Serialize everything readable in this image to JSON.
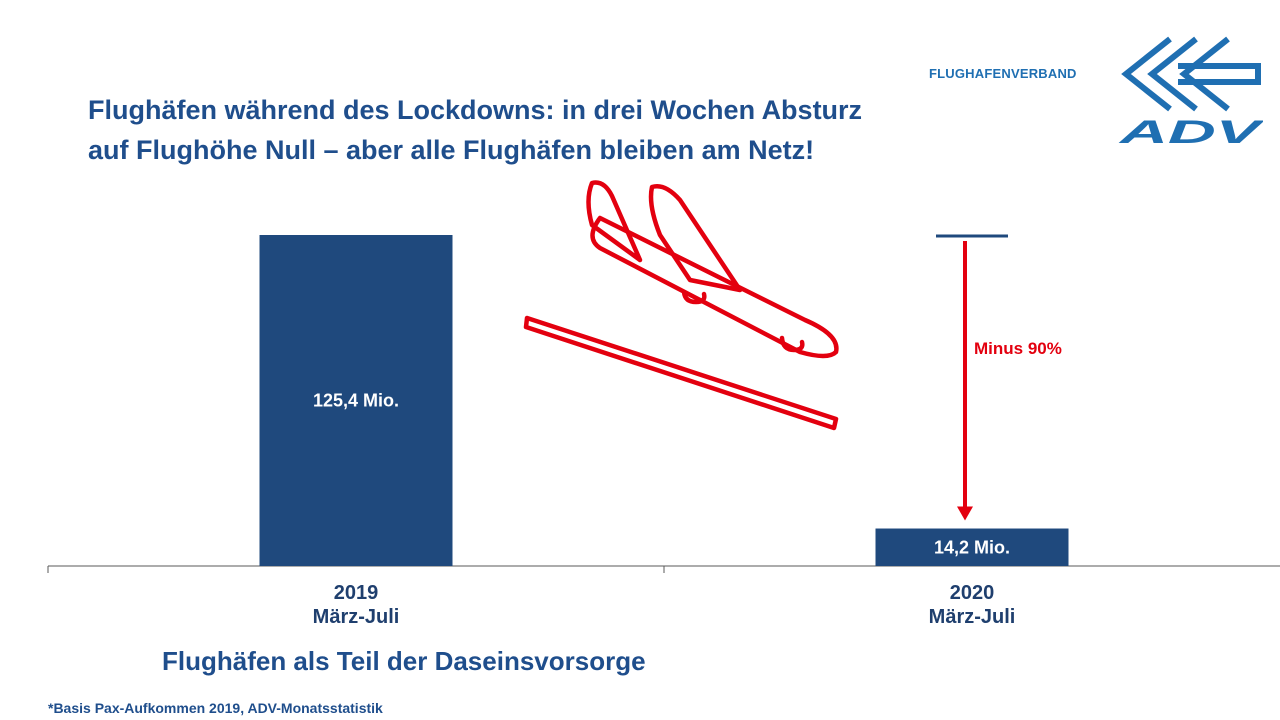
{
  "title_lines": [
    "Flughäfen während des Lockdowns: in drei Wochen Absturz",
    "auf Flughöhe Null – aber alle Flughäfen bleiben am Netz!"
  ],
  "brand": {
    "name": "FLUGHAFENVERBAND",
    "logo_text": "ADV",
    "logo_color": "#1f6fb2"
  },
  "chart_data": {
    "type": "bar",
    "categories": [
      "2019\nMärz-Juli",
      "2020\nMärz-Juli"
    ],
    "category_lines": [
      [
        "2019",
        "März-Juli"
      ],
      [
        "2020",
        "März-Juli"
      ]
    ],
    "values": [
      125.4,
      14.2
    ],
    "value_labels": [
      "125,4 Mio.",
      "14,2 Mio."
    ],
    "bar_color": "#1f497d",
    "ylim": [
      0,
      125.4
    ],
    "grid": false,
    "annotation": {
      "text": "Minus 90%",
      "color": "#e3000f",
      "from_value": 125.4,
      "to_value": 14.2
    }
  },
  "decoration": {
    "airplane_icon_color": "#e3000f"
  },
  "subtitle": "Flughäfen als Teil der Daseinsvorsorge",
  "footnote": "*Basis Pax-Aufkommen 2019, ADV-Monatsstatistik"
}
